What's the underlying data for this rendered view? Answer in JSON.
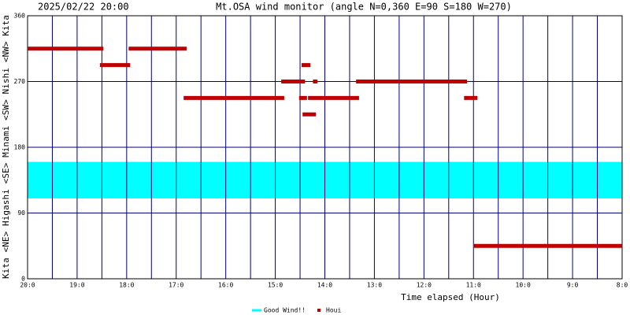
{
  "chart_data": {
    "type": "range",
    "stamp": "2025/02/22 20:00",
    "title": "Mt.OSA wind monitor (angle N=0,360 E=90 S=180 W=270)",
    "ylabel": "Kita  <NE>  Higashi  <SE>  Minami  <SW>  Nishi  <NW>  Kita",
    "xlabel": "Time elapsed (Hour)",
    "xlim": [
      20,
      8
    ],
    "xticks": [
      {
        "value": 20,
        "label": "20:0"
      },
      {
        "value": 19,
        "label": "19:0"
      },
      {
        "value": 18,
        "label": "18:0"
      },
      {
        "value": 17,
        "label": "17:0"
      },
      {
        "value": 16,
        "label": "16:0"
      },
      {
        "value": 15,
        "label": "15:0"
      },
      {
        "value": 14,
        "label": "14:0"
      },
      {
        "value": 13,
        "label": "13:0"
      },
      {
        "value": 12,
        "label": "12:0"
      },
      {
        "value": 11,
        "label": "11:0"
      },
      {
        "value": 10,
        "label": "10:0"
      },
      {
        "value": 9,
        "label": "9:0"
      },
      {
        "value": 8,
        "label": "8:0"
      }
    ],
    "xgrid": [
      19.5,
      18.5,
      17.5,
      16.5,
      15.5,
      14.5,
      13.5,
      12.5,
      11.5,
      10.5,
      9.5,
      8.5
    ],
    "ylim": [
      0,
      360
    ],
    "yticks": [
      0,
      90,
      180,
      270,
      360
    ],
    "grid": true,
    "band": {
      "name": "Good Wind!!",
      "color": "#00ffff",
      "from": 110,
      "to": 160
    },
    "series": [
      {
        "name": "Houi",
        "color": "#c00000",
        "segments": [
          {
            "x0": 20.0,
            "x1": 18.47,
            "y": 315
          },
          {
            "x0": 18.54,
            "x1": 17.93,
            "y": 292.5
          },
          {
            "x0": 17.96,
            "x1": 16.79,
            "y": 315
          },
          {
            "x0": 16.85,
            "x1": 14.82,
            "y": 247.5
          },
          {
            "x0": 14.88,
            "x1": 14.4,
            "y": 270
          },
          {
            "x0": 14.47,
            "x1": 14.29,
            "y": 292.5
          },
          {
            "x0": 14.24,
            "x1": 14.15,
            "y": 270
          },
          {
            "x0": 14.52,
            "x1": 14.36,
            "y": 247.5
          },
          {
            "x0": 14.34,
            "x1": 13.31,
            "y": 247.5
          },
          {
            "x0": 14.45,
            "x1": 14.18,
            "y": 225
          },
          {
            "x0": 13.37,
            "x1": 11.13,
            "y": 270
          },
          {
            "x0": 11.19,
            "x1": 10.92,
            "y": 247.5
          },
          {
            "x0": 10.99,
            "x1": 8.0,
            "y": 45
          }
        ]
      }
    ]
  }
}
